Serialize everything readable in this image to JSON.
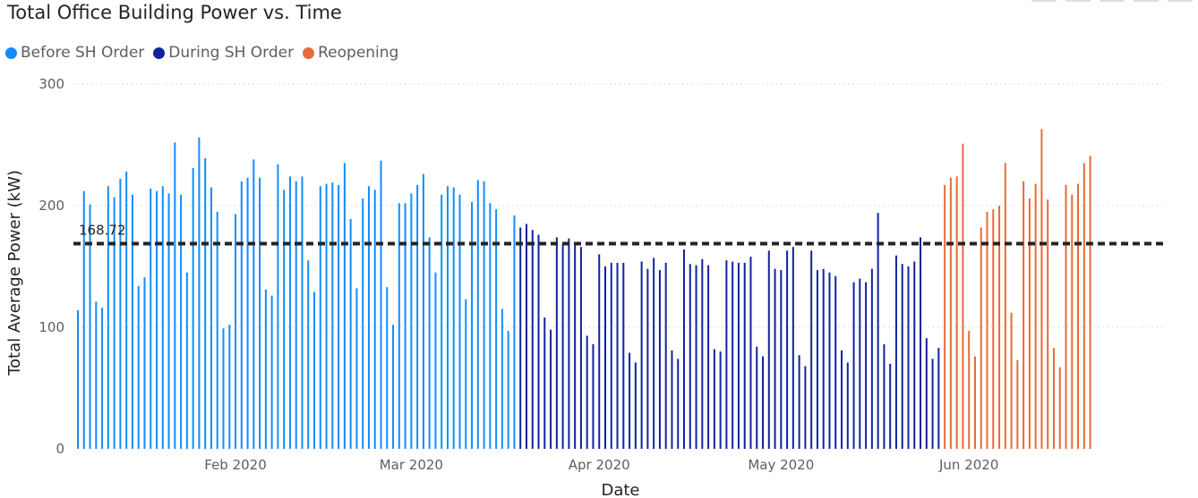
{
  "chart_data": {
    "type": "bar",
    "title": "Total Office Building Power vs. Time",
    "xlabel": "Date",
    "ylabel": "Total Average Power (kW)",
    "ylim": [
      0,
      300
    ],
    "yticks": [
      0,
      100,
      200,
      300
    ],
    "grid": true,
    "legend_position": "top-left",
    "x_ticks": [
      {
        "date": "2020-02-01",
        "label": "Feb 2020"
      },
      {
        "date": "2020-03-01",
        "label": "Mar 2020"
      },
      {
        "date": "2020-04-01",
        "label": "Apr 2020"
      },
      {
        "date": "2020-05-01",
        "label": "May 2020"
      },
      {
        "date": "2020-06-01",
        "label": "Jun 2020"
      }
    ],
    "reference_line": {
      "value": 168.72,
      "label": "168.72",
      "color": "#252423",
      "style": "dashed"
    },
    "series": [
      {
        "name": "Before SH Order",
        "color": "#118DFF",
        "start_date": "2020-01-06",
        "values": [
          114,
          212,
          201,
          121,
          116,
          216,
          207,
          222,
          228,
          209,
          134,
          141,
          214,
          212,
          216,
          210,
          252,
          209,
          145,
          231,
          256,
          239,
          215,
          195,
          99,
          102,
          193,
          220,
          223,
          238,
          223,
          131,
          126,
          234,
          213,
          224,
          220,
          224,
          155,
          129,
          216,
          218,
          219,
          217,
          235,
          189,
          132,
          206,
          216,
          213,
          237,
          133,
          102,
          202,
          202,
          210,
          217,
          226,
          174,
          145,
          209,
          216,
          215,
          209,
          123,
          203,
          221,
          220,
          202,
          197,
          115,
          97,
          192
        ]
      },
      {
        "name": "During SH Order",
        "color": "#12239E",
        "start_date": "2020-03-19",
        "values": [
          182,
          185,
          180,
          176,
          108,
          98,
          174,
          168,
          173,
          169,
          166,
          93,
          86,
          160,
          150,
          153,
          153,
          153,
          79,
          71,
          154,
          148,
          157,
          147,
          153,
          81,
          74,
          164,
          152,
          151,
          156,
          151,
          82,
          80,
          155,
          154,
          153,
          153,
          158,
          84,
          76,
          163,
          148,
          147,
          163,
          166,
          77,
          68,
          163,
          147,
          148,
          145,
          142,
          81,
          71,
          137,
          140,
          137,
          148,
          194,
          86,
          70,
          159,
          152,
          150,
          154,
          174,
          91,
          74,
          83
        ]
      },
      {
        "name": "Reopening",
        "color": "#E66C37",
        "start_date": "2020-05-28",
        "values": [
          217,
          223,
          224,
          251,
          97,
          76,
          182,
          195,
          197,
          200,
          235,
          112,
          73,
          220,
          206,
          218,
          263,
          205,
          83,
          67,
          217,
          209,
          218,
          235,
          241
        ]
      }
    ]
  }
}
